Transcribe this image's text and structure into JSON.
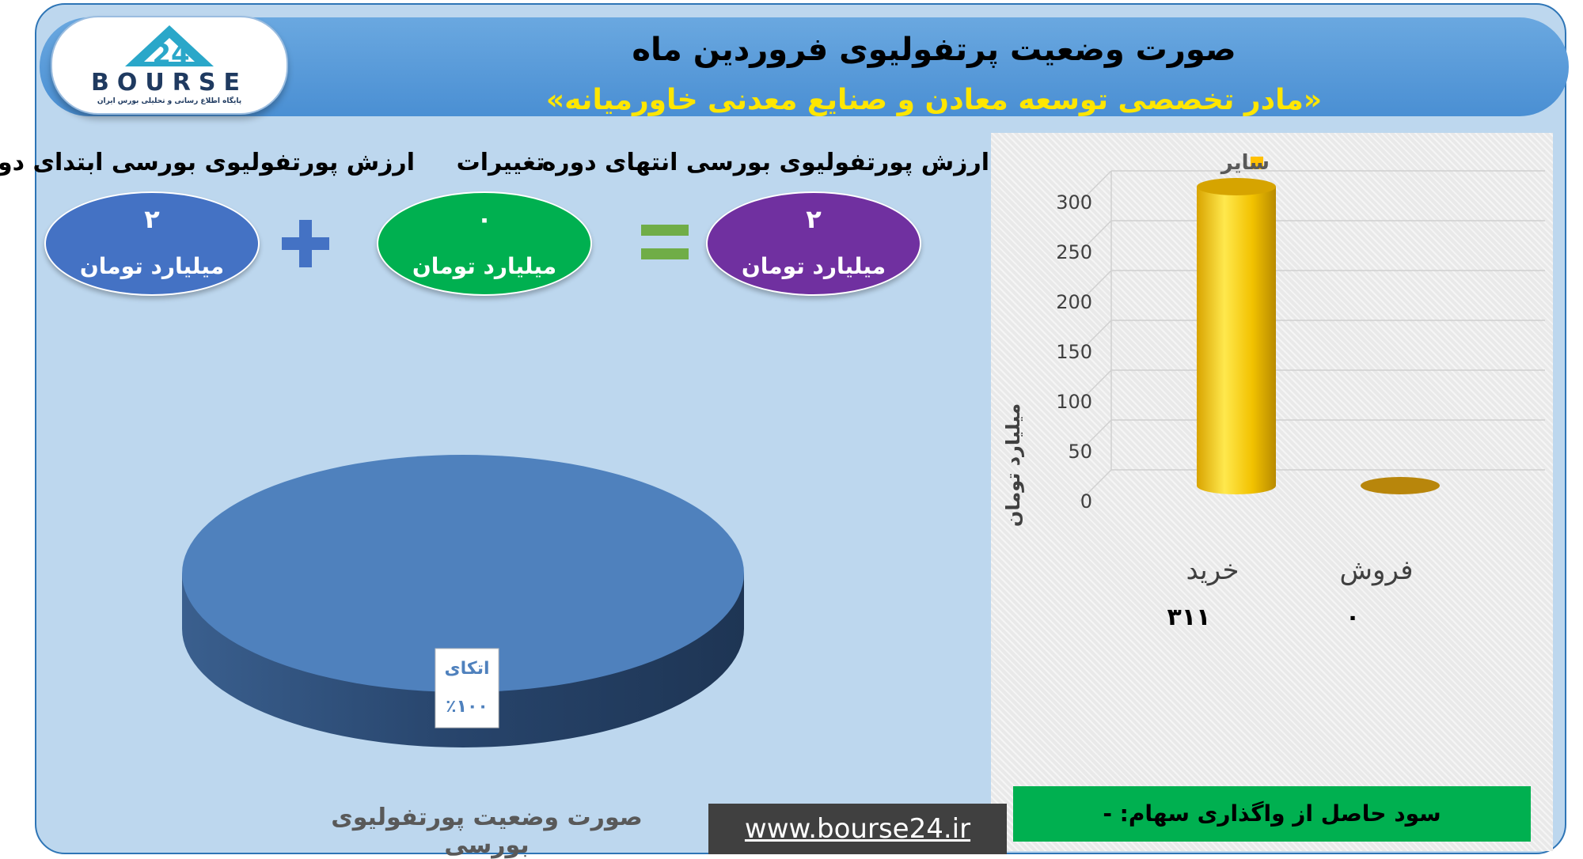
{
  "header": {
    "title": "صورت وضعیت پرتفولیوی فروردین ماه",
    "subtitle": "«مادر تخصصی توسعه معادن و صنایع معدنی خاورمیانه»"
  },
  "logo": {
    "number": "24",
    "word": "BOURSE",
    "tagline": "پایگاه اطلاع رسانی و تحلیلی بورس ایران"
  },
  "summary": {
    "start": {
      "label": "ارزش پورتفولیوی بورسی ابتدای دوره",
      "value": "۲",
      "unit": "میلیارد تومان",
      "color": "#4472c4"
    },
    "change": {
      "label": "تغییرات",
      "value": "۰",
      "unit": "میلیارد تومان",
      "color": "#00b050"
    },
    "end": {
      "label": "ارزش پورتفولیوی بورسی انتهای دوره",
      "value": "۲",
      "unit": "میلیارد تومان",
      "color": "#7030a0"
    },
    "plus_symbol": "+",
    "equals_symbol": "="
  },
  "chart_data": [
    {
      "type": "pie",
      "labels": [
        "اتکای"
      ],
      "values": [
        100
      ],
      "value_labels": [
        "٪۱۰۰"
      ],
      "colors": [
        "#4f81bd"
      ],
      "caption": "صورت وضعیت پورتفولیوی بورسی"
    },
    {
      "type": "bar",
      "categories": [
        "خرید",
        "فروش"
      ],
      "series": [
        {
          "name": "سایر",
          "values": [
            311,
            0
          ],
          "color": "#ffc000"
        }
      ],
      "value_labels": [
        "۳۱۱",
        "۰"
      ],
      "ylabel": "میلیارد تومان",
      "ylim": [
        0,
        300
      ],
      "yticks": [
        0,
        50,
        100,
        150,
        200,
        250,
        300
      ],
      "legend": "top"
    }
  ],
  "profit": {
    "text": "سود حاصل از واگذاری سهام: -"
  },
  "footer": {
    "website": "www.bourse24.ir"
  }
}
